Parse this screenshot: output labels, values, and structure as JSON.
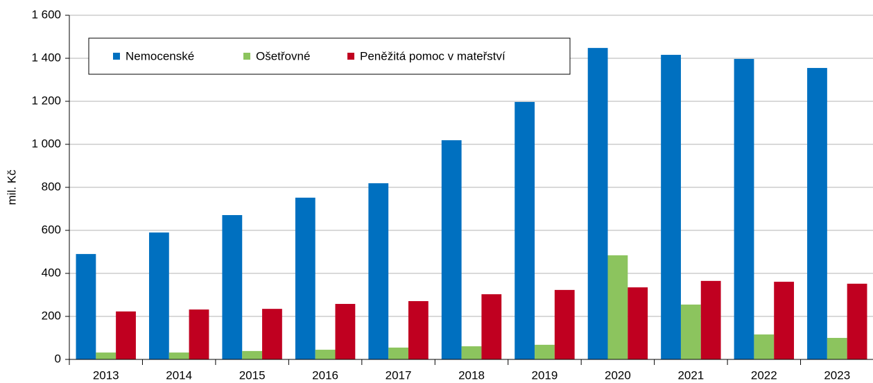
{
  "chart_data": {
    "type": "bar",
    "y_label": "mil. Kč",
    "categories": [
      "2013",
      "2014",
      "2015",
      "2016",
      "2017",
      "2018",
      "2019",
      "2020",
      "2021",
      "2022",
      "2023"
    ],
    "series": [
      {
        "name": "Nemocenské",
        "color": "#0070c0",
        "values": [
          490,
          590,
          671,
          752,
          819,
          1019,
          1197,
          1448,
          1416,
          1397,
          1355
        ]
      },
      {
        "name": "Ošetřovné",
        "color": "#8cc45e",
        "values": [
          32,
          32,
          39,
          45,
          55,
          61,
          68,
          484,
          255,
          116,
          100
        ]
      },
      {
        "name": "Peněžitá pomoc v mateřství",
        "color": "#c00020",
        "values": [
          223,
          232,
          235,
          258,
          271,
          303,
          323,
          335,
          365,
          361,
          352
        ]
      }
    ],
    "ylim": [
      0,
      1600
    ],
    "yticks": [
      0,
      200,
      400,
      600,
      800,
      {
        "value": 1000,
        "label": "1 000"
      },
      {
        "value": 1200,
        "label": "1 200"
      },
      {
        "value": 1400,
        "label": "1 400"
      },
      {
        "value": 1600,
        "label": "1 600"
      }
    ],
    "grid": true
  }
}
